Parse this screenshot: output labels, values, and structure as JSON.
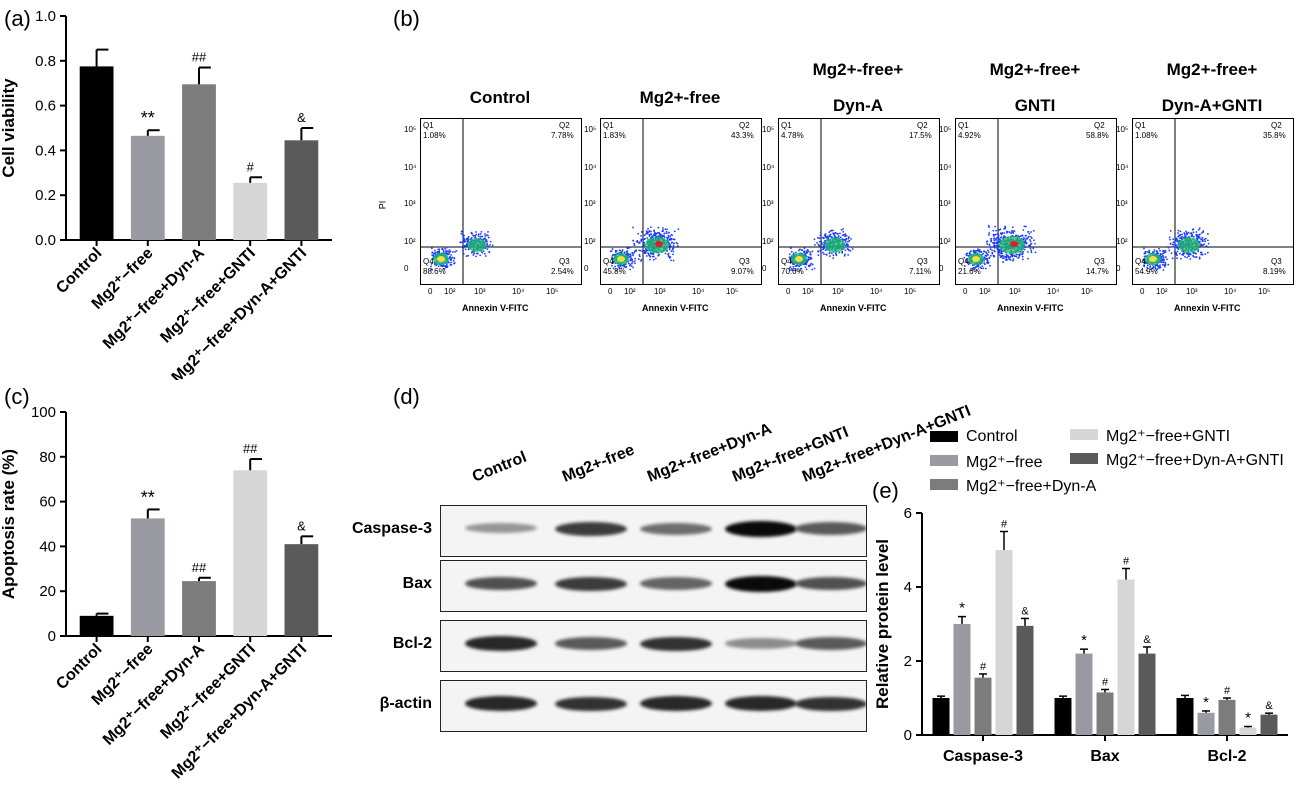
{
  "colors": {
    "control": "#000000",
    "mg_free": "#9a9aa2",
    "dyn_a": "#7c7c7c",
    "gnti": "#d6d6d6",
    "dyn_gnti": "#5a5a5a",
    "flow_blue": "#1a3cff",
    "flow_green": "#20c060",
    "flow_red": "#e02020"
  },
  "panel_labels": {
    "a": "(a)",
    "b": "(b)",
    "c": "(c)",
    "d": "(d)",
    "e": "(e)"
  },
  "chart_data": [
    {
      "id": "a",
      "type": "bar",
      "ylabel": "Cell viability",
      "ylim": [
        0,
        1.0
      ],
      "yticks": [
        "0.0",
        "0.2",
        "0.4",
        "0.6",
        "0.8",
        "1.0"
      ],
      "categories": [
        "Control",
        "Mg2⁺−free",
        "Mg2⁺−free+Dyn-A",
        "Mg2⁺−free+GNTI",
        "Mg2⁺−free+Dyn-A+GNTI"
      ],
      "values": [
        0.775,
        0.465,
        0.695,
        0.255,
        0.445
      ],
      "errors": [
        0.075,
        0.025,
        0.075,
        0.025,
        0.055
      ],
      "annotations": [
        "",
        "**",
        "##",
        "#",
        "&"
      ]
    },
    {
      "id": "c",
      "type": "bar",
      "ylabel": "Apoptosis rate (%)",
      "ylim": [
        0,
        100
      ],
      "yticks": [
        "0",
        "20",
        "40",
        "60",
        "80",
        "100"
      ],
      "categories": [
        "Control",
        "Mg2⁺−free",
        "Mg2⁺−free+Dyn-A",
        "Mg2⁺−free+GNTI",
        "Mg2⁺−free+Dyn-A+GNTI"
      ],
      "values": [
        9,
        52.5,
        24.5,
        74,
        41
      ],
      "errors": [
        1,
        4,
        1.5,
        5,
        3.5
      ],
      "annotations": [
        "",
        "**",
        "##",
        "##",
        "&"
      ]
    },
    {
      "id": "e",
      "type": "bar",
      "ylabel": "Relative protein level",
      "ylim": [
        0,
        6
      ],
      "yticks": [
        "0",
        "2",
        "4",
        "6"
      ],
      "categories": [
        "Caspase-3",
        "Bax",
        "Bcl-2"
      ],
      "series": [
        {
          "name": "Control",
          "values": [
            1.0,
            1.0,
            1.0
          ],
          "errors": [
            0.05,
            0.05,
            0.07
          ],
          "annotations": [
            "",
            "",
            ""
          ]
        },
        {
          "name": "Mg2⁺−free",
          "values": [
            3.0,
            2.2,
            0.6
          ],
          "errors": [
            0.2,
            0.12,
            0.05
          ],
          "annotations": [
            "*",
            "*",
            "*"
          ]
        },
        {
          "name": "Mg2⁺−free+Dyn-A",
          "values": [
            1.55,
            1.15,
            0.95
          ],
          "errors": [
            0.1,
            0.08,
            0.05
          ],
          "annotations": [
            "#",
            "#",
            "#"
          ]
        },
        {
          "name": "Mg2⁺−free+GNTI",
          "values": [
            5.0,
            4.2,
            0.2
          ],
          "errors": [
            0.5,
            0.3,
            0.03
          ],
          "annotations": [
            "#",
            "#",
            "*"
          ]
        },
        {
          "name": "Mg2⁺−free+Dyn-A+GNTI",
          "values": [
            2.95,
            2.2,
            0.55
          ],
          "errors": [
            0.2,
            0.18,
            0.04
          ],
          "annotations": [
            "&",
            "&",
            "&"
          ]
        }
      ]
    }
  ],
  "flow": {
    "ylabel": "PI",
    "xlabel": "Annexin V-FITC",
    "quadrant_names": [
      "Q1",
      "Q2",
      "Q3",
      "Q4"
    ],
    "xticks": [
      "0",
      "10²",
      "10³",
      "10⁴",
      "10⁵"
    ],
    "yticks": [
      "0",
      "10²",
      "10³",
      "10⁴",
      "10⁵"
    ],
    "plots": [
      {
        "title_lines": [
          "Control"
        ],
        "q1": "1.08%",
        "q2": "7.78%",
        "q3": "2.54%",
        "q4": "88.6%",
        "spread": 0.3
      },
      {
        "title_lines": [
          "Mg2+-free"
        ],
        "q1": "1.83%",
        "q2": "43.3%",
        "q3": "9.07%",
        "q4": "45.8%",
        "spread": 0.8
      },
      {
        "title_lines": [
          "Mg2+-free+",
          "Dyn-A"
        ],
        "q1": "4.78%",
        "q2": "17.5%",
        "q3": "7.11%",
        "q4": "70.6%",
        "spread": 0.5
      },
      {
        "title_lines": [
          "Mg2+-free+",
          "GNTI"
        ],
        "q1": "4.92%",
        "q2": "58.8%",
        "q3": "14.7%",
        "q4": "21.6%",
        "spread": 1.0
      },
      {
        "title_lines": [
          "Mg2+-free+",
          "Dyn-A+GNTI"
        ],
        "q1": "1.08%",
        "q2": "35.8%",
        "q3": "8.19%",
        "q4": "54.9%",
        "spread": 0.6
      }
    ]
  },
  "western_blot": {
    "lane_labels": [
      "Control",
      "Mg2+-free",
      "Mg2+-free+Dyn-A",
      "Mg2+-free+GNTI",
      "Mg2+-free+Dyn-A+GNTI"
    ],
    "rows": [
      {
        "protein": "Caspase-3",
        "intensity": [
          0.3,
          0.75,
          0.5,
          1.0,
          0.6
        ]
      },
      {
        "protein": "Bax",
        "intensity": [
          0.65,
          0.75,
          0.55,
          1.0,
          0.65
        ]
      },
      {
        "protein": "Bcl-2",
        "intensity": [
          0.85,
          0.6,
          0.8,
          0.35,
          0.6
        ]
      },
      {
        "protein": "β-actin",
        "intensity": [
          0.85,
          0.8,
          0.85,
          0.85,
          0.8
        ]
      }
    ]
  }
}
